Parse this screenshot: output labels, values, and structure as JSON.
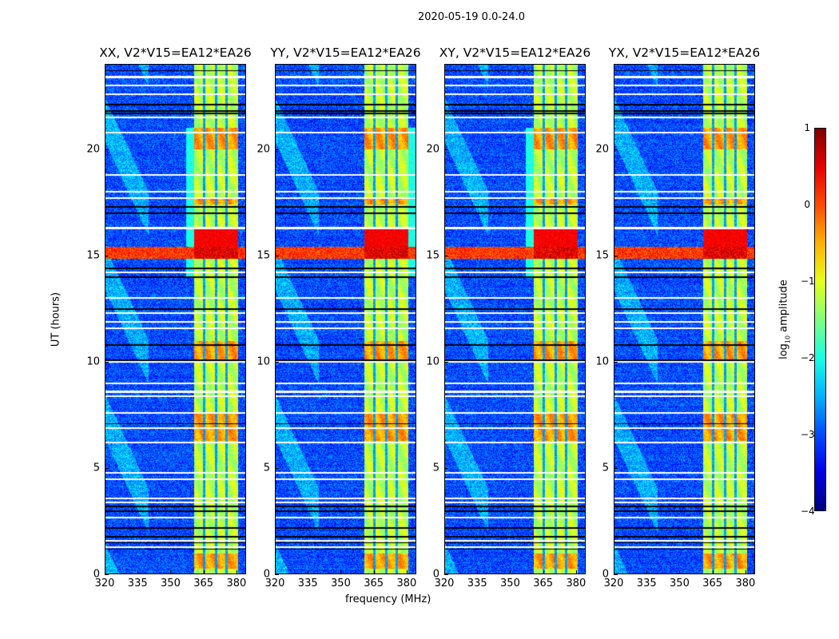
{
  "chart_data": {
    "type": "heatmap",
    "suptitle": "2020-05-19 0.0-24.0",
    "xlabel": "frequency (MHz)",
    "ylabel": "UT (hours)",
    "xlim": [
      320,
      384.4
    ],
    "ylim": [
      0,
      24
    ],
    "xticks": [
      "320",
      "335",
      "350",
      "365",
      "380"
    ],
    "yticks": [
      "0",
      "5",
      "10",
      "15",
      "20"
    ],
    "panels": [
      {
        "title": "XX, V2*V15=EA12*EA26",
        "extra_band": [
          357,
          360.7
        ]
      },
      {
        "title": "YY, V2*V15=EA12*EA26",
        "extra_band": [
          380.4,
          384.4
        ]
      },
      {
        "title": "XY, V2*V15=EA12*EA26",
        "extra_band": [
          357,
          360.7
        ]
      },
      {
        "title": "YX, V2*V15=EA12*EA26",
        "extra_band": null
      }
    ],
    "colorbar": {
      "label_main": "log",
      "label_sub": "10",
      "label_rest": " amplitude",
      "range": [
        -4,
        1
      ],
      "ticks": [
        "1",
        "0",
        "−1",
        "−2",
        "−3",
        "−4"
      ],
      "colormap": "jet"
    },
    "background_level": -3.0,
    "rfi_band_mhz": [
      360.7,
      380.4
    ],
    "rfi_band_dividers_mhz": [
      365.1,
      370.5,
      375.3
    ],
    "rfi_band_level": -1.2,
    "strong_rfi_hours": [
      14.85,
      15.4
    ],
    "strong_rfi_level": 0.3,
    "band_hot_hours": [
      [
        15.4,
        16.3
      ],
      [
        17.4,
        17.7
      ],
      [
        20.0,
        21.0
      ],
      [
        10.0,
        11.0
      ],
      [
        6.3,
        7.6
      ],
      [
        0.3,
        1.0
      ]
    ],
    "flagged_white_hours": [
      23.4,
      23.0,
      22.6,
      21.5,
      20.8,
      18.8,
      18.0,
      17.7,
      16.3,
      14.2,
      13.0,
      12.3,
      11.9,
      11.6,
      10.0,
      9.0,
      8.6,
      8.4,
      7.6,
      6.9,
      6.2,
      4.8,
      4.5,
      3.6,
      3.4,
      2.7,
      1.6,
      1.3
    ],
    "flagged_black_hours": [
      23.7,
      22.1,
      21.8,
      21.7,
      17.3,
      17.0,
      14.4,
      14.0,
      12.5,
      10.8,
      10.1,
      7.1,
      3.2,
      3.0,
      2.2,
      1.8,
      1.5,
      1.2
    ]
  }
}
